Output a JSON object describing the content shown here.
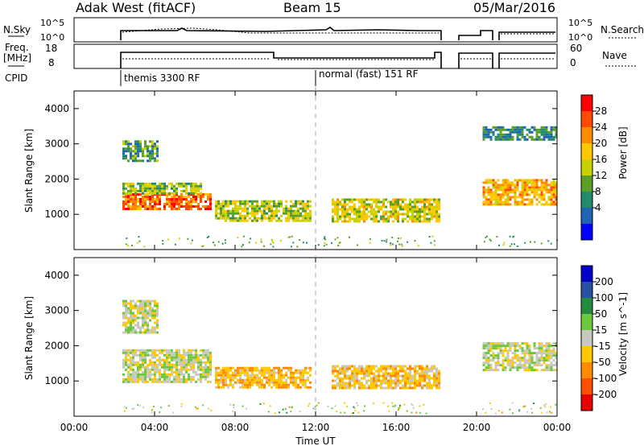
{
  "header": {
    "station": "Adak West (fitACF)",
    "beam": "Beam 15",
    "date": "05/Mar/2016"
  },
  "panels": {
    "nsky_label": "N.Sky",
    "nsky_ticks": [
      "10^5",
      "10^0"
    ],
    "nsearch_label": "N.Search",
    "nsearch_ticks": [
      "10^5",
      "10^0"
    ],
    "freq_label_1": "Freq.",
    "freq_label_2": "[MHz]",
    "freq_ticks": [
      "18",
      "8"
    ],
    "nave_label": "Nave",
    "nave_ticks": [
      "60",
      "0"
    ],
    "cpid_label": "CPID",
    "cpid_modes": [
      {
        "name": "themis 3300 RF",
        "start_hour": 2.4
      },
      {
        "name": "normal (fast) 151 RF",
        "start_hour": 12.0
      }
    ]
  },
  "axes": {
    "ylabel": "Slant Range [km]",
    "xlabel": "Time UT",
    "x_ticks": [
      "00:00",
      "04:00",
      "08:00",
      "12:00",
      "16:00",
      "20:00",
      "00:00"
    ],
    "y_ticks": [
      "4000",
      "3000",
      "2000",
      "1000"
    ]
  },
  "colorbars": {
    "power": {
      "label": "Power [dB]",
      "ticks": [
        "28",
        "24",
        "20",
        "16",
        "12",
        "8",
        "4"
      ],
      "colors": [
        "#ff0000",
        "#ff4a00",
        "#ff8c00",
        "#ffc800",
        "#c8d200",
        "#5aa028",
        "#228b6e",
        "#1e64b4",
        "#0000ff"
      ]
    },
    "velocity": {
      "label": "Velocity [m s^-1]",
      "ticks": [
        "200",
        "100",
        "50",
        "15",
        "-15",
        "-50",
        "-100",
        "-200"
      ],
      "colors": [
        "#0000c8",
        "#2850a0",
        "#228b3c",
        "#6ec83c",
        "#c8c8c0",
        "#ffc800",
        "#ff8c00",
        "#ff5000",
        "#e60000"
      ]
    }
  },
  "chart_data": {
    "type": "heatmap",
    "title": "Adak West (fitACF)  Beam 15  05/Mar/2016",
    "xlabel": "Time UT",
    "ylabel": "Slant Range [km]",
    "xlim_hours": [
      0,
      24
    ],
    "ylim_km": [
      0,
      4500
    ],
    "cpid_change_hour": 12.0,
    "power_regions": [
      {
        "t0": 2.4,
        "t1": 6.8,
        "r0": 1150,
        "r1": 1600,
        "power_db": 26
      },
      {
        "t0": 2.4,
        "t1": 6.3,
        "r0": 1600,
        "r1": 1900,
        "power_db": 14
      },
      {
        "t0": 2.4,
        "t1": 4.2,
        "r0": 2500,
        "r1": 3100,
        "power_db": 10
      },
      {
        "t0": 7.0,
        "t1": 11.8,
        "r0": 800,
        "r1": 1400,
        "power_db": 15
      },
      {
        "t0": 12.8,
        "t1": 18.2,
        "r0": 800,
        "r1": 1450,
        "power_db": 17
      },
      {
        "t0": 20.3,
        "t1": 24.0,
        "r0": 1300,
        "r1": 2000,
        "power_db": 22
      },
      {
        "t0": 20.3,
        "t1": 24.0,
        "r0": 3100,
        "r1": 3500,
        "power_db": 8
      }
    ],
    "velocity_regions": [
      {
        "t0": 2.4,
        "t1": 6.8,
        "r0": 1000,
        "r1": 1900,
        "velocity_ms": 0
      },
      {
        "t0": 2.4,
        "t1": 4.2,
        "r0": 2400,
        "r1": 3300,
        "velocity_ms": 0
      },
      {
        "t0": 7.0,
        "t1": 11.8,
        "r0": 800,
        "r1": 1400,
        "velocity_ms": -40
      },
      {
        "t0": 12.8,
        "t1": 18.2,
        "r0": 800,
        "r1": 1450,
        "velocity_ms": -30
      },
      {
        "t0": 20.3,
        "t1": 24.0,
        "r0": 1300,
        "r1": 2100,
        "velocity_ms": 0
      }
    ]
  }
}
